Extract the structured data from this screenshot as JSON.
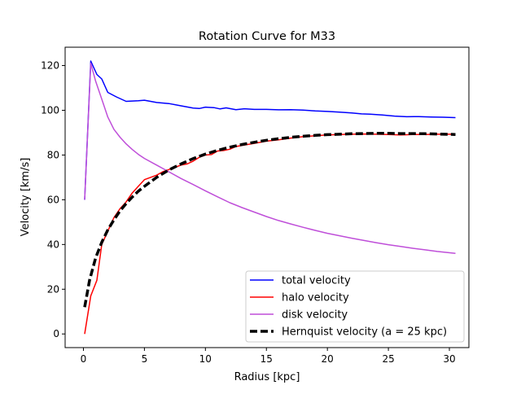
{
  "chart_data": {
    "type": "line",
    "title": "Rotation Curve for M33",
    "xlabel": "Radius [kpc]",
    "ylabel": "Velocity [km/s]",
    "xlim": [
      -1.5,
      31.6
    ],
    "ylim": [
      -6.1,
      128.2
    ],
    "xticks": [
      0,
      5,
      10,
      15,
      20,
      25,
      30
    ],
    "yticks": [
      0,
      20,
      40,
      60,
      80,
      100,
      120
    ],
    "grid": false,
    "legend_position": "lower-right",
    "series": [
      {
        "name": "total velocity",
        "color": "#0000ff",
        "dash": "",
        "width": 1.5,
        "points": [
          [
            0.1,
            60
          ],
          [
            0.6,
            122
          ],
          [
            1.1,
            116
          ],
          [
            1.5,
            114
          ],
          [
            2.0,
            108
          ],
          [
            2.7,
            106
          ],
          [
            3.5,
            104
          ],
          [
            4.5,
            104.3
          ],
          [
            5.0,
            104.5
          ],
          [
            6.0,
            103.5
          ],
          [
            7.0,
            103
          ],
          [
            8.0,
            102
          ],
          [
            9.0,
            101
          ],
          [
            9.5,
            100.8
          ],
          [
            10.0,
            101.4
          ],
          [
            10.7,
            101.2
          ],
          [
            11.2,
            100.6
          ],
          [
            11.7,
            101.1
          ],
          [
            12.5,
            100.3
          ],
          [
            13.2,
            100.7
          ],
          [
            14.0,
            100.4
          ],
          [
            15.0,
            100.4
          ],
          [
            16.0,
            100.2
          ],
          [
            17.0,
            100.3
          ],
          [
            18.0,
            100.1
          ],
          [
            19.0,
            99.7
          ],
          [
            20.0,
            99.5
          ],
          [
            21.0,
            99.2
          ],
          [
            22.0,
            98.8
          ],
          [
            22.8,
            98.4
          ],
          [
            23.5,
            98.3
          ],
          [
            24.5,
            97.9
          ],
          [
            25.5,
            97.4
          ],
          [
            26.5,
            97.1
          ],
          [
            27.5,
            97.2
          ],
          [
            28.5,
            97.0
          ],
          [
            29.5,
            96.9
          ],
          [
            30.5,
            96.7
          ]
        ]
      },
      {
        "name": "halo velocity",
        "color": "#ff0000",
        "dash": "",
        "width": 1.5,
        "points": [
          [
            0.1,
            0
          ],
          [
            0.6,
            17
          ],
          [
            1.1,
            24
          ],
          [
            1.5,
            40
          ],
          [
            2.0,
            46
          ],
          [
            2.5,
            52
          ],
          [
            3.0,
            56
          ],
          [
            3.5,
            59
          ],
          [
            4.0,
            63
          ],
          [
            4.5,
            66
          ],
          [
            5.0,
            69
          ],
          [
            5.5,
            70
          ],
          [
            6.0,
            71
          ],
          [
            6.5,
            72.5
          ],
          [
            7.0,
            73.5
          ],
          [
            7.5,
            74.5
          ],
          [
            8.0,
            75.5
          ],
          [
            8.5,
            76
          ],
          [
            9.0,
            77.3
          ],
          [
            9.5,
            79
          ],
          [
            10.0,
            80
          ],
          [
            10.5,
            80.2
          ],
          [
            11.0,
            81.8
          ],
          [
            11.5,
            82
          ],
          [
            12.0,
            82.6
          ],
          [
            12.5,
            83.8
          ],
          [
            13.0,
            84.3
          ],
          [
            14.0,
            85.2
          ],
          [
            15.0,
            86.2
          ],
          [
            16.0,
            86.8
          ],
          [
            17.0,
            87.6
          ],
          [
            18.0,
            88.2
          ],
          [
            19.0,
            88.6
          ],
          [
            20.0,
            89.0
          ],
          [
            21.0,
            89.2
          ],
          [
            22.0,
            89.3
          ],
          [
            23.0,
            89.4
          ],
          [
            24.0,
            89.3
          ],
          [
            25.0,
            89.2
          ],
          [
            26.0,
            89.0
          ],
          [
            27.0,
            89.2
          ],
          [
            28.0,
            89.2
          ],
          [
            29.0,
            89.3
          ],
          [
            30.5,
            89.3
          ]
        ]
      },
      {
        "name": "disk velocity",
        "color": "#bf4fd9",
        "dash": "",
        "width": 1.5,
        "points": [
          [
            0.1,
            60
          ],
          [
            0.6,
            121
          ],
          [
            1.0,
            113
          ],
          [
            1.5,
            105
          ],
          [
            2.0,
            97
          ],
          [
            2.5,
            91.5
          ],
          [
            3.0,
            88
          ],
          [
            3.5,
            85
          ],
          [
            4.0,
            82.5
          ],
          [
            4.5,
            80.3
          ],
          [
            5.0,
            78.5
          ],
          [
            6.0,
            75.5
          ],
          [
            7.0,
            72.5
          ],
          [
            8.0,
            69.5
          ],
          [
            9.0,
            66.8
          ],
          [
            10.0,
            64
          ],
          [
            11.0,
            61.3
          ],
          [
            12.0,
            58.7
          ],
          [
            13.0,
            56.5
          ],
          [
            14.0,
            54.5
          ],
          [
            15.0,
            52.5
          ],
          [
            16.0,
            50.7
          ],
          [
            17.0,
            49.2
          ],
          [
            18.0,
            47.7
          ],
          [
            19.0,
            46.3
          ],
          [
            20.0,
            45
          ],
          [
            21.0,
            43.9
          ],
          [
            22.0,
            42.8
          ],
          [
            23.0,
            41.8
          ],
          [
            24.0,
            40.8
          ],
          [
            25.0,
            39.9
          ],
          [
            26.0,
            39.1
          ],
          [
            27.0,
            38.3
          ],
          [
            28.0,
            37.6
          ],
          [
            29.0,
            36.9
          ],
          [
            30.5,
            36
          ]
        ]
      },
      {
        "name": "Hernquist velocity (a = 25 kpc)",
        "color": "#000000",
        "dash": "9,4",
        "width": 3.5,
        "points": [
          [
            0.1,
            12
          ],
          [
            0.5,
            24
          ],
          [
            1.0,
            34
          ],
          [
            1.5,
            41
          ],
          [
            2.0,
            46.5
          ],
          [
            2.5,
            51
          ],
          [
            3.0,
            55
          ],
          [
            3.5,
            58.3
          ],
          [
            4.0,
            61.2
          ],
          [
            4.5,
            63.8
          ],
          [
            5.0,
            66
          ],
          [
            6.0,
            70
          ],
          [
            7.0,
            73.3
          ],
          [
            8.0,
            76
          ],
          [
            9.0,
            78.4
          ],
          [
            10.0,
            80.4
          ],
          [
            11.0,
            82.1
          ],
          [
            12.0,
            83.5
          ],
          [
            13.0,
            84.7
          ],
          [
            14.0,
            85.7
          ],
          [
            15.0,
            86.6
          ],
          [
            16.0,
            87.3
          ],
          [
            17.0,
            87.9
          ],
          [
            18.0,
            88.4
          ],
          [
            19.0,
            88.8
          ],
          [
            20.0,
            89.1
          ],
          [
            21.0,
            89.3
          ],
          [
            22.0,
            89.5
          ],
          [
            23.0,
            89.6
          ],
          [
            24.0,
            89.7
          ],
          [
            25.0,
            89.7
          ],
          [
            26.0,
            89.6
          ],
          [
            27.0,
            89.6
          ],
          [
            28.0,
            89.5
          ],
          [
            29.0,
            89.4
          ],
          [
            30.5,
            89.2
          ]
        ]
      }
    ]
  }
}
